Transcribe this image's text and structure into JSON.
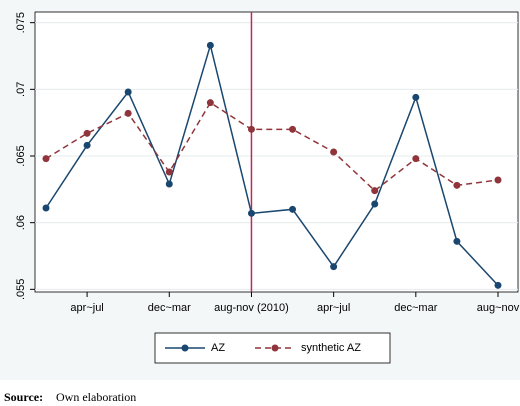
{
  "chart_data": {
    "type": "line",
    "categories": [
      null,
      "apr~jul",
      null,
      "dec~mar",
      null,
      "aug-nov (2010)",
      null,
      "apr~jul",
      null,
      "dec~mar",
      null,
      "aug~nov"
    ],
    "series": [
      {
        "name": "AZ",
        "color": "#1a476f",
        "dash": false,
        "values": [
          0.0611,
          0.0658,
          0.0698,
          0.0629,
          0.0733,
          0.0607,
          0.061,
          0.0567,
          0.0614,
          0.0694,
          0.0586,
          0.0553
        ]
      },
      {
        "name": "synthetic AZ",
        "color": "#90353b",
        "dash": true,
        "values": [
          0.0648,
          0.0667,
          0.0682,
          0.0638,
          0.069,
          0.067,
          0.067,
          0.0653,
          0.0624,
          0.0648,
          0.0628,
          0.0632
        ]
      }
    ],
    "ylim": [
      0.0548,
      0.0758
    ],
    "yticks": [
      {
        "value": 0.055,
        "label": ".055"
      },
      {
        "value": 0.06,
        "label": ".06"
      },
      {
        "value": 0.065,
        "label": ".065"
      },
      {
        "value": 0.07,
        "label": ".07"
      },
      {
        "value": 0.075,
        "label": ".075"
      }
    ],
    "grid": true,
    "vline": {
      "index": 5,
      "color": "#c0275a"
    },
    "legend": "bottom",
    "source_label": "Source:",
    "source_text": "Own elaboration"
  }
}
